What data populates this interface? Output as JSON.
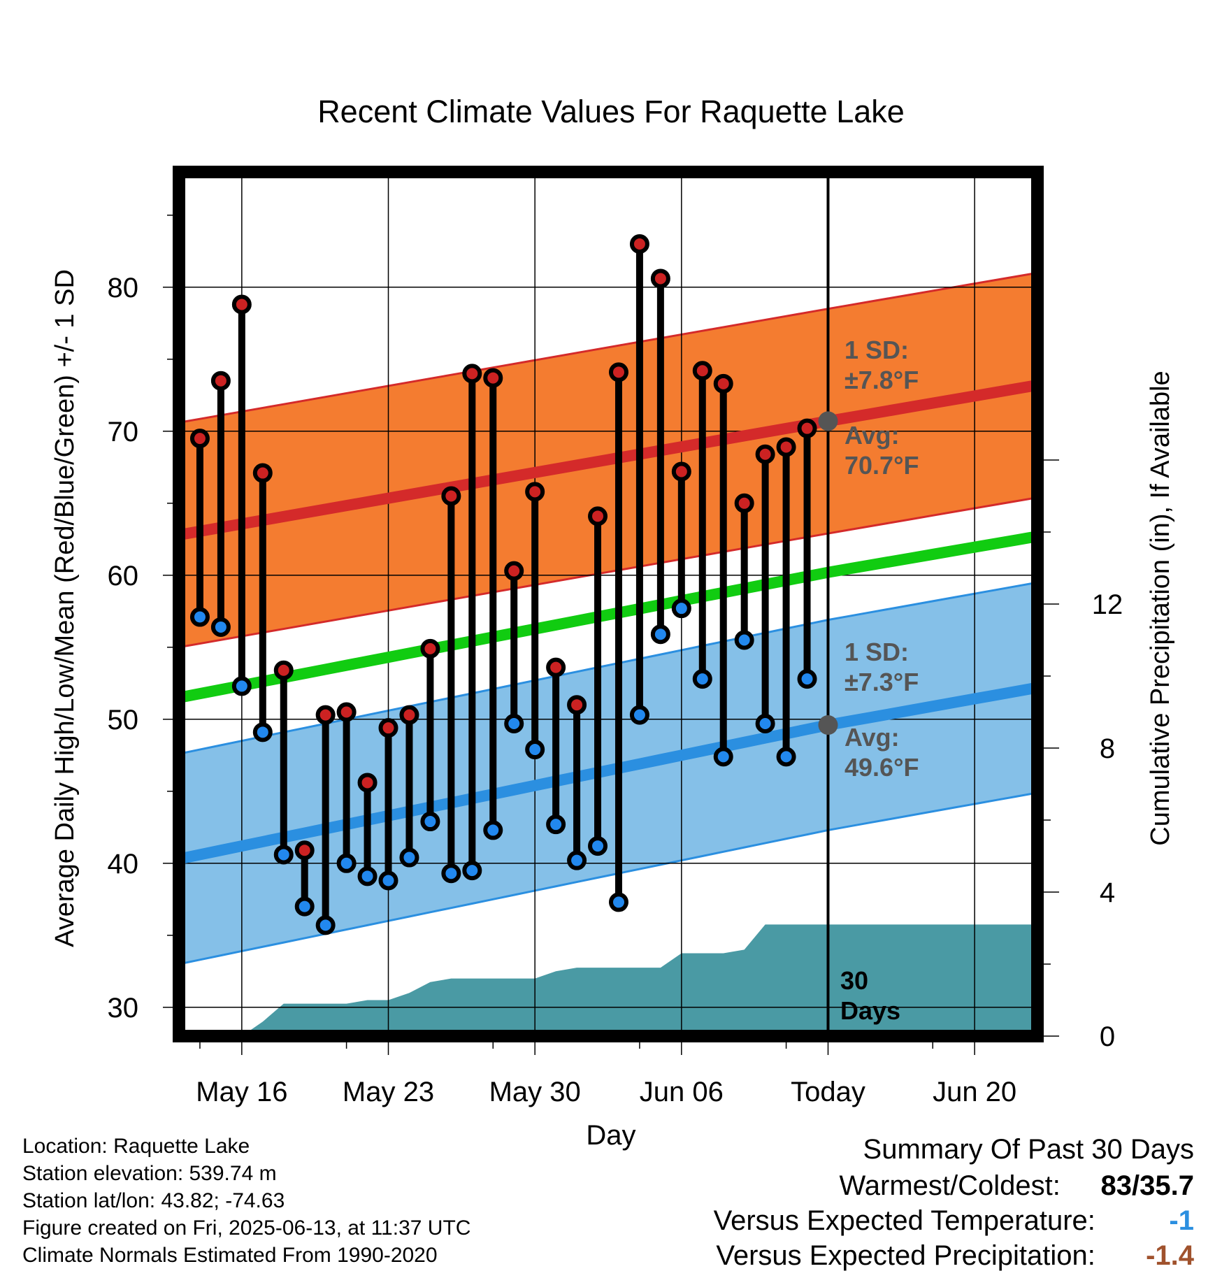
{
  "chart_data": {
    "type": "line",
    "title": "Recent Climate Values For Raquette Lake",
    "xlabel": "Day",
    "ylabel_left": "Average Daily High/Low/Mean (Red/Blue/Green) +/- 1 SD",
    "ylabel_right": "Cumulative Precipitation (in), If Available",
    "x_ticks": [
      "May 16",
      "May 23",
      "May 30",
      "Jun 06",
      "Today",
      "Jun 20"
    ],
    "x_tick_dates": [
      "2025-05-16",
      "2025-05-23",
      "2025-05-30",
      "2025-06-06",
      "2025-06-13",
      "2025-06-20"
    ],
    "xlim": [
      "2025-05-13",
      "2025-06-23"
    ],
    "ylim_left": [
      28,
      88
    ],
    "y_ticks_left": [
      30,
      40,
      50,
      60,
      70,
      80
    ],
    "ylim_right": [
      0,
      24
    ],
    "y_ticks_right": [
      0,
      4,
      8,
      12
    ],
    "grid": true,
    "dates": [
      "2025-05-14",
      "2025-05-15",
      "2025-05-16",
      "2025-05-17",
      "2025-05-18",
      "2025-05-19",
      "2025-05-20",
      "2025-05-21",
      "2025-05-22",
      "2025-05-23",
      "2025-05-24",
      "2025-05-25",
      "2025-05-26",
      "2025-05-27",
      "2025-05-28",
      "2025-05-29",
      "2025-05-30",
      "2025-05-31",
      "2025-06-01",
      "2025-06-02",
      "2025-06-03",
      "2025-06-04",
      "2025-06-05",
      "2025-06-06",
      "2025-06-07",
      "2025-06-08",
      "2025-06-09",
      "2025-06-10",
      "2025-06-11",
      "2025-06-12"
    ],
    "series": [
      {
        "name": "High",
        "color": "#cc2222",
        "values": [
          69.5,
          73.5,
          78.8,
          67.1,
          53.4,
          40.9,
          50.3,
          50.5,
          45.6,
          49.4,
          50.3,
          54.9,
          65.5,
          74.0,
          73.7,
          60.3,
          65.8,
          53.6,
          51.0,
          64.1,
          74.1,
          83.0,
          80.6,
          67.2,
          74.2,
          73.3,
          65.0,
          68.4,
          68.9,
          70.2
        ]
      },
      {
        "name": "Low",
        "color": "#2288ee",
        "values": [
          57.1,
          56.4,
          52.3,
          49.1,
          40.6,
          37.0,
          35.7,
          40.0,
          39.1,
          38.8,
          40.4,
          42.9,
          39.3,
          39.5,
          42.3,
          49.7,
          47.9,
          42.7,
          40.2,
          41.2,
          37.3,
          50.3,
          55.9,
          57.7,
          52.8,
          47.4,
          55.5,
          49.7,
          47.4,
          52.8
        ]
      }
    ],
    "normals": {
      "dates": [
        "2025-05-13",
        "2025-06-13",
        "2025-06-23"
      ],
      "high_avg": [
        62.8,
        70.7,
        73.2
      ],
      "high_sd": 7.8,
      "low_avg": [
        40.3,
        49.6,
        52.2
      ],
      "low_sd": 7.3,
      "mean_avg": [
        51.5,
        60.2,
        62.7
      ]
    },
    "precip": {
      "name": "Cumulative Precipitation",
      "dates": [
        "2025-05-15",
        "2025-05-16",
        "2025-05-17",
        "2025-05-18",
        "2025-05-19",
        "2025-05-20",
        "2025-05-21",
        "2025-05-22",
        "2025-05-23",
        "2025-05-24",
        "2025-05-25",
        "2025-05-26",
        "2025-05-27",
        "2025-05-28",
        "2025-05-29",
        "2025-05-30",
        "2025-05-31",
        "2025-06-01",
        "2025-06-02",
        "2025-06-03",
        "2025-06-04",
        "2025-06-05",
        "2025-06-06",
        "2025-06-07",
        "2025-06-08",
        "2025-06-09",
        "2025-06-10",
        "2025-06-11",
        "2025-06-23"
      ],
      "values": [
        0.0,
        0.0,
        0.4,
        0.9,
        0.9,
        0.9,
        0.9,
        1.0,
        1.0,
        1.2,
        1.5,
        1.6,
        1.6,
        1.6,
        1.6,
        1.6,
        1.8,
        1.9,
        1.9,
        1.9,
        1.9,
        1.9,
        2.3,
        2.3,
        2.3,
        2.4,
        3.1,
        3.1,
        3.1
      ]
    },
    "annotations": [
      {
        "text_line1": "1 SD:",
        "text_line2": "±7.8°F"
      },
      {
        "text_line1": "Avg:",
        "text_line2": "70.7°F"
      },
      {
        "text_line1": "1 SD:",
        "text_line2": "±7.3°F"
      },
      {
        "text_line1": "Avg:",
        "text_line2": "49.6°F"
      },
      {
        "text_line1": "30",
        "text_line2": "Days"
      }
    ]
  },
  "info": {
    "location": "Location: Raquette Lake",
    "elevation": "Station elevation: 539.74 m",
    "latlon": "Station lat/lon: 43.82; -74.63",
    "created": "Figure created on Fri, 2025-06-13, at 11:37 UTC",
    "normals": "Climate Normals Estimated From 1990-2020"
  },
  "summary": {
    "title": "Summary Of Past 30 Days",
    "warmest_label": "Warmest/Coldest:",
    "warmest_value": "83/35.7",
    "temp_label": "Versus Expected Temperature:",
    "temp_value": "-1",
    "temp_color": "#2b8fe0",
    "precip_label": "Versus Expected Precipitation:",
    "precip_value": "-1.4",
    "precip_color": "#a0522d"
  }
}
